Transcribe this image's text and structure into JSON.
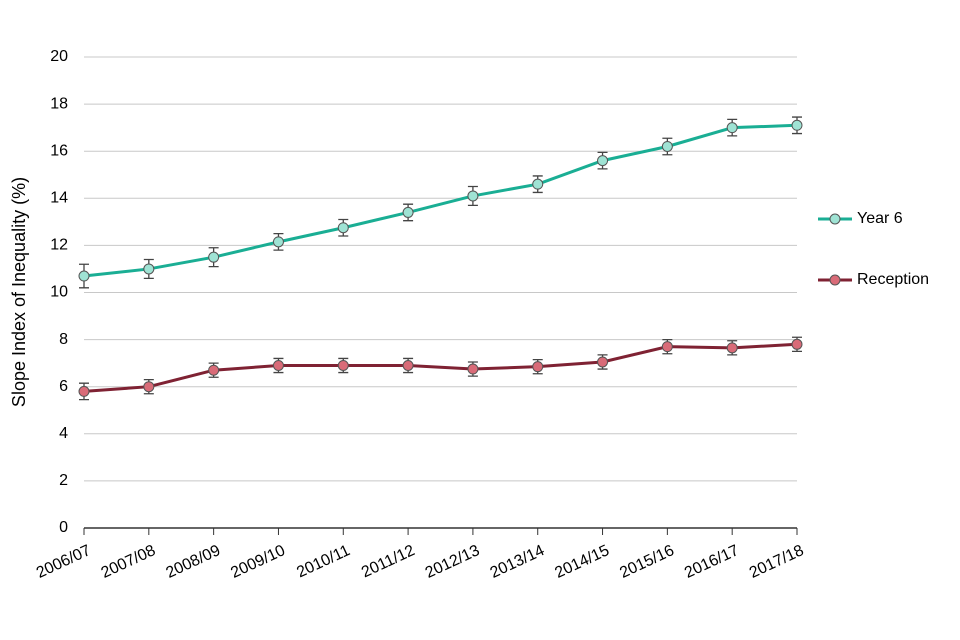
{
  "chart_data": {
    "type": "line",
    "y_label": "Slope Index of Inequality (%)",
    "categories": [
      "2006/07",
      "2007/08",
      "2008/09",
      "2009/10",
      "2010/11",
      "2011/12",
      "2012/13",
      "2013/14",
      "2014/15",
      "2015/16",
      "2016/17",
      "2017/18"
    ],
    "series": [
      {
        "name": "Year 6",
        "color": "#1aae94",
        "marker_fill": "#9fe3d4",
        "values": [
          10.7,
          11.0,
          11.5,
          12.15,
          12.75,
          13.4,
          14.1,
          14.6,
          15.6,
          16.2,
          17.0,
          17.1
        ],
        "errors": [
          0.5,
          0.4,
          0.4,
          0.35,
          0.35,
          0.35,
          0.4,
          0.35,
          0.35,
          0.35,
          0.35,
          0.35
        ]
      },
      {
        "name": "Reception",
        "color": "#7f2233",
        "marker_fill": "#d96b78",
        "values": [
          5.8,
          6.0,
          6.7,
          6.9,
          6.9,
          6.9,
          6.75,
          6.85,
          7.05,
          7.7,
          7.65,
          7.8
        ],
        "errors": [
          0.35,
          0.3,
          0.3,
          0.3,
          0.3,
          0.3,
          0.3,
          0.3,
          0.3,
          0.3,
          0.3,
          0.3
        ]
      }
    ],
    "ylim": [
      0,
      20
    ],
    "yticks": [
      0,
      2,
      4,
      6,
      8,
      10,
      12,
      14,
      16,
      18,
      20
    ],
    "grid": true,
    "legend": "right"
  }
}
